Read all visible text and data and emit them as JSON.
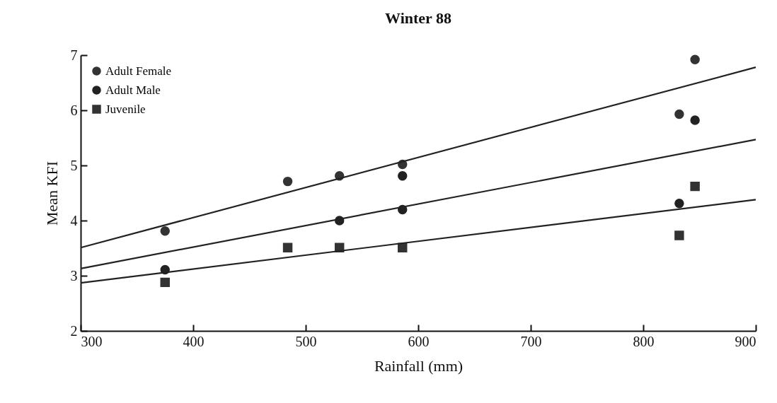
{
  "chart_data": {
    "type": "scatter",
    "title": "Winter 88",
    "xlabel": "Rainfall (mm)",
    "ylabel": "Mean KFI",
    "xlim": [
      300,
      900
    ],
    "xticks": [
      300,
      400,
      500,
      600,
      700,
      800,
      900
    ],
    "ylim": [
      2,
      7
    ],
    "yticks": [
      2,
      3,
      4,
      5,
      6,
      7
    ],
    "grid": false,
    "legend": "top left",
    "series": [
      {
        "name": "Adult Female",
        "marker": "circle",
        "color": "#333333",
        "x": [
          375,
          484,
          530,
          586,
          832,
          846
        ],
        "values": [
          3.81,
          4.71,
          4.81,
          5.02,
          5.93,
          6.92
        ]
      },
      {
        "name": "Adult Male",
        "marker": "circle",
        "color": "#222222",
        "x": [
          375,
          530,
          586,
          586,
          832,
          846
        ],
        "values": [
          3.11,
          4.0,
          4.81,
          4.2,
          4.31,
          5.82
        ]
      },
      {
        "name": "Juvenile",
        "marker": "square",
        "color": "#333333",
        "x": [
          375,
          484,
          530,
          586,
          832,
          846
        ],
        "values": [
          2.88,
          3.51,
          3.51,
          3.51,
          3.73,
          4.62
        ]
      },
      {
        "type": "line",
        "marker": "none",
        "line_style": "solid",
        "color": "#222222",
        "x": [
          300,
          900
        ],
        "values": [
          3.51,
          6.78
        ]
      },
      {
        "type": "line",
        "marker": "none",
        "line_style": "solid",
        "color": "#222222",
        "x": [
          300,
          900
        ],
        "values": [
          3.13,
          5.47
        ]
      },
      {
        "type": "line",
        "marker": "none",
        "line_style": "solid",
        "color": "#222222",
        "x": [
          300,
          900
        ],
        "values": [
          2.87,
          4.38
        ]
      }
    ]
  }
}
